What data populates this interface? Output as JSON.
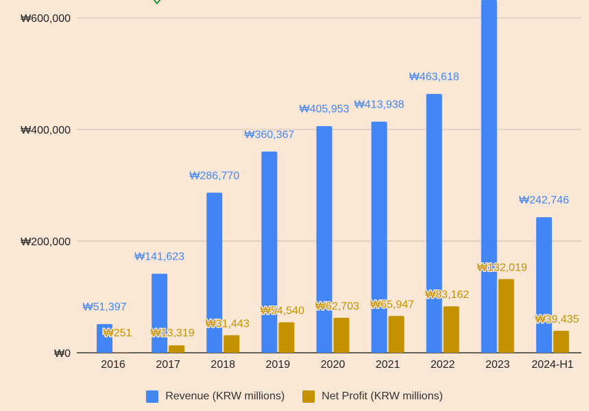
{
  "chart_data": {
    "type": "bar",
    "categories": [
      "2016",
      "2017",
      "2018",
      "2019",
      "2020",
      "2021",
      "2022",
      "2023",
      "2024-H1"
    ],
    "series": [
      {
        "name": "Revenue (KRW millions)",
        "color": "#4285f4",
        "values": [
          51397,
          141623,
          286770,
          360367,
          405953,
          413938,
          463618,
          681000,
          242746
        ],
        "labels": [
          "₩51,397",
          "₩141,623",
          "₩286,770",
          "₩360,367",
          "₩405,953",
          "₩413,938",
          "₩463,618",
          "",
          "₩242,746"
        ]
      },
      {
        "name": "Net Profit (KRW millions)",
        "color": "#c49200",
        "values": [
          251,
          13319,
          31443,
          54540,
          62703,
          65947,
          83162,
          132019,
          39435
        ],
        "labels": [
          "₩251",
          "₩13,319",
          "₩31,443",
          "₩54,540",
          "₩62,703",
          "₩65,947",
          "₩83,162",
          "₩132,019",
          "₩39,435"
        ]
      }
    ],
    "yticks": [
      0,
      200000,
      400000,
      600000
    ],
    "ytick_labels": [
      "₩0",
      "₩200,000",
      "₩400,000",
      "₩600,000"
    ],
    "ylim": [
      0,
      628000
    ],
    "grid": true,
    "legend": "bottom",
    "title": "",
    "xlabel": "",
    "ylabel": ""
  },
  "legend": {
    "revenue_label": "Revenue (KRW millions)",
    "profit_label": "Net Profit (KRW millions)",
    "revenue_color": "#4285f4",
    "profit_color": "#c49200"
  }
}
